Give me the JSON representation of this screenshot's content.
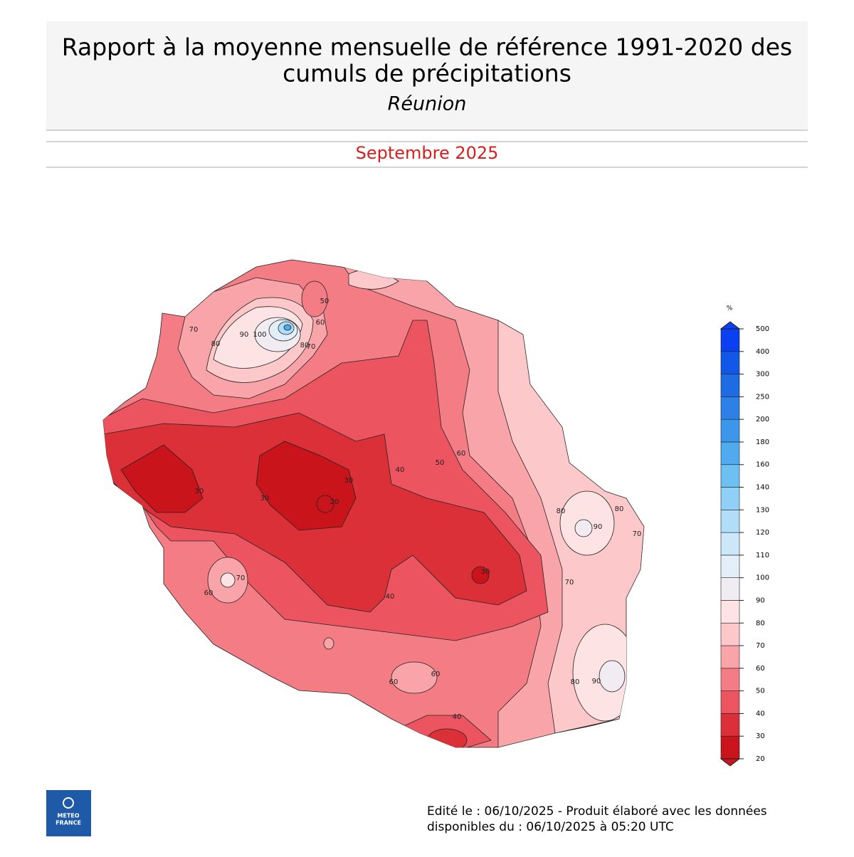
{
  "header": {
    "title_lines": [
      "Rapport à la moyenne mensuelle de référence 1991-2020 des",
      "cumuls de précipitations"
    ],
    "region": "Réunion",
    "period": "Septembre 2025"
  },
  "colorbar": {
    "unit": "%",
    "levels": [
      20,
      30,
      40,
      50,
      60,
      70,
      80,
      90,
      100,
      110,
      120,
      130,
      140,
      160,
      180,
      200,
      250,
      300,
      400,
      500
    ],
    "colors": [
      "#c8141a",
      "#dc3038",
      "#ec5560",
      "#f47d85",
      "#f9a4a8",
      "#fcc8ca",
      "#fde3e3",
      "#f0ecf2",
      "#e2eef8",
      "#cce8f8",
      "#b0def8",
      "#90d0f6",
      "#6cc0f2",
      "#50aaee",
      "#3c96ea",
      "#2c80e6",
      "#1e6ce4",
      "#1258e8",
      "#0a40f0"
    ]
  },
  "contour_labels": [
    70,
    80,
    90,
    100,
    50,
    60,
    80,
    70,
    30,
    30,
    30,
    20,
    40,
    50,
    60,
    80,
    90,
    80,
    70,
    70,
    70,
    60,
    40,
    30,
    60,
    60,
    40,
    80,
    90
  ],
  "logo": {
    "line1": "METEO",
    "line2": "FRANCE"
  },
  "footer": {
    "line1": "Edité le : 06/10/2025 - Produit élaboré avec les données",
    "line2": "disponibles du : 06/10/2025 à 05:20 UTC"
  }
}
